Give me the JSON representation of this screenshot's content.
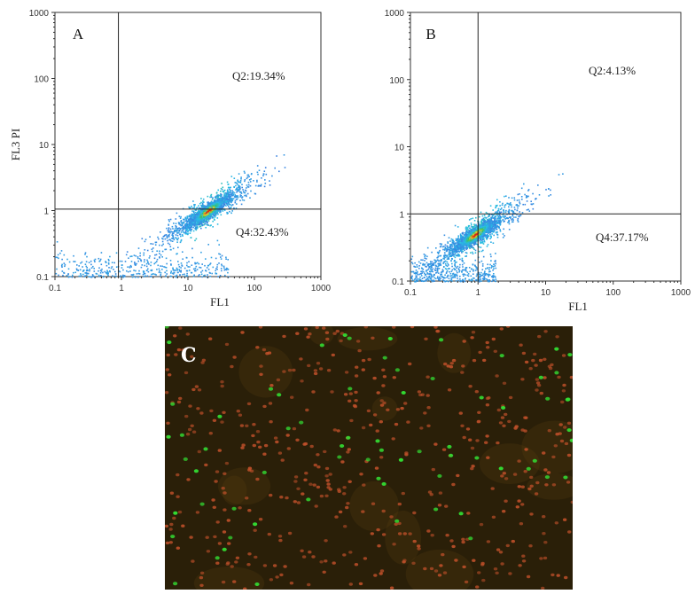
{
  "chart_data": [
    {
      "type": "scatter",
      "panel_label": "A",
      "xlabel": "FL1",
      "ylabel": "FL3 PI",
      "scale": "log",
      "xlim": [
        0.1,
        1000
      ],
      "ylim": [
        0.1,
        1000
      ],
      "x_ticks": [
        "0.1",
        "1",
        "10",
        "100",
        "1000"
      ],
      "y_ticks": [
        "0.1",
        "1",
        "10",
        "100",
        "1000"
      ],
      "gate": {
        "x": 0.9,
        "y": 1.05
      },
      "quadrant_labels": [
        {
          "text": "Q2:19.34%",
          "quadrant": "upper-right"
        },
        {
          "text": "Q4:32.43%",
          "quadrant": "lower-right"
        }
      ],
      "density_center": {
        "x": 20,
        "y": 1.0
      }
    },
    {
      "type": "scatter",
      "panel_label": "B",
      "xlabel": "FL1",
      "ylabel": "",
      "scale": "log",
      "xlim": [
        0.1,
        1000
      ],
      "ylim": [
        0.1,
        1000
      ],
      "x_ticks": [
        "0.1",
        "1",
        "10",
        "100",
        "1000"
      ],
      "y_ticks": [
        "0.1",
        "1",
        "10",
        "100",
        "1000"
      ],
      "gate": {
        "x": 1.0,
        "y": 1.0
      },
      "quadrant_labels": [
        {
          "text": "Q2:4.13%",
          "quadrant": "upper-right"
        },
        {
          "text": "Q4:37.17%",
          "quadrant": "lower-right"
        }
      ],
      "density_center": {
        "x": 0.9,
        "y": 0.5
      }
    }
  ],
  "micrograph": {
    "label": "C",
    "background": "#2a1f08",
    "cell_colors": {
      "green": "#33dd33",
      "red": "#c0502a"
    }
  },
  "colors": {
    "axis": "#333333",
    "gate": "#222222",
    "density_low": "#3a7fe0",
    "density_high": "#d62a10"
  }
}
